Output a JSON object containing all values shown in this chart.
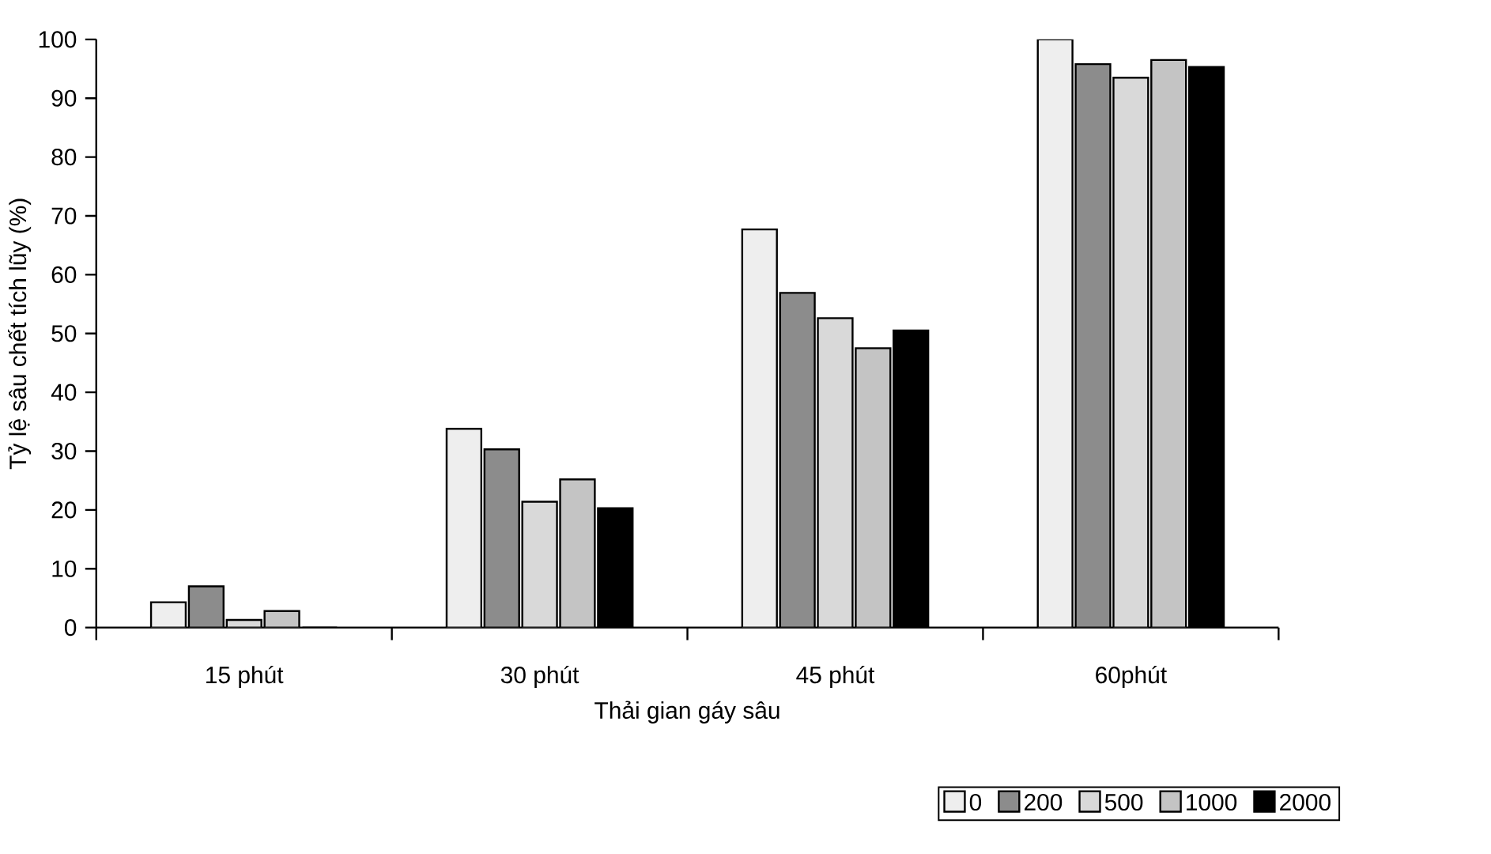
{
  "chart_data": {
    "type": "bar",
    "xlabel": "Thải gian gáy sâu",
    "ylabel": "Tỷ lệ sâu chết tích lũy (%)",
    "categories": [
      "15 phút",
      "30 phút",
      "45 phút",
      "60phút"
    ],
    "series": [
      {
        "name": "0",
        "color": "#eeeeee",
        "values": [
          4.3,
          33.8,
          67.7,
          100
        ]
      },
      {
        "name": "200",
        "color": "#8c8c8c",
        "values": [
          7.0,
          30.3,
          56.9,
          95.8
        ]
      },
      {
        "name": "500",
        "color": "#d9d9d9",
        "values": [
          1.3,
          21.4,
          52.6,
          93.5
        ]
      },
      {
        "name": "1000",
        "color": "#c4c4c4",
        "values": [
          2.8,
          25.2,
          47.5,
          96.5
        ]
      },
      {
        "name": "2000",
        "color": "#000000",
        "values": [
          0,
          20.3,
          50.5,
          95.3
        ]
      }
    ],
    "ylim": [
      0,
      100
    ],
    "yticks": [
      0,
      10,
      20,
      30,
      40,
      50,
      60,
      70,
      80,
      90,
      100
    ],
    "grid": false,
    "legend": "bottom right"
  }
}
